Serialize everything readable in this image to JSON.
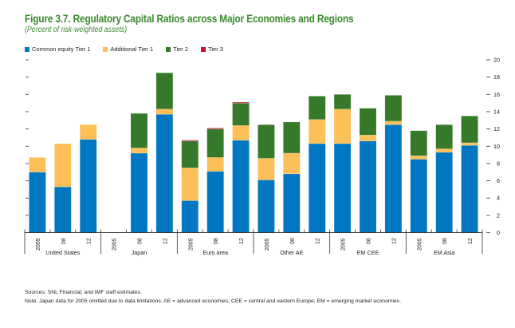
{
  "figure": {
    "title": "Figure 3.7.  Regulatory Capital Ratios across Major Economies and Regions",
    "subtitle": "(Percent of risk-weighted assets)"
  },
  "notes": {
    "sources": "Sources: SNL Financial; and IMF staff estimates.",
    "note": "Note: Japan data for 2005 omitted due to data limitations. AE = advanced economies; CEE = central and eastern Europe; EM = emerging market economies."
  },
  "chart_data": {
    "type": "bar",
    "stacked": true,
    "title": "Figure 3.7.  Regulatory Capital Ratios across Major Economies and Regions",
    "subtitle": "(Percent of risk-weighted assets)",
    "xlabel": "",
    "ylabel": "",
    "ylim": [
      0,
      20
    ],
    "yticks": [
      0,
      2,
      4,
      6,
      8,
      10,
      12,
      14,
      16,
      18,
      20
    ],
    "y_axis_side": "right",
    "legend_position": "top-left",
    "grid": false,
    "groups": [
      "United States",
      "Japan",
      "Euro area",
      "Other AE",
      "EM CEE",
      "EM Asia"
    ],
    "periods": [
      "2005",
      "08",
      "12"
    ],
    "categories": [
      "United States 2005",
      "United States 08",
      "United States 12",
      "Japan 2005",
      "Japan 08",
      "Japan 12",
      "Euro area 2005",
      "Euro area 08",
      "Euro area 12",
      "Other AE 2005",
      "Other AE 08",
      "Other AE 12",
      "EM CEE 2005",
      "EM CEE 08",
      "EM CEE 12",
      "EM Asia 2005",
      "EM Asia 08",
      "EM Asia 12"
    ],
    "series": [
      {
        "name": "Common equity Tier 1",
        "color": "#0077c0",
        "values": [
          7.0,
          5.3,
          10.8,
          null,
          9.2,
          13.7,
          3.7,
          7.1,
          10.7,
          6.1,
          6.8,
          10.3,
          10.3,
          10.6,
          12.5,
          8.5,
          9.3,
          10.1
        ]
      },
      {
        "name": "Additional Tier 1",
        "color": "#fdbf57",
        "values": [
          1.7,
          5.0,
          1.7,
          null,
          0.6,
          0.6,
          3.8,
          1.6,
          1.7,
          2.5,
          2.4,
          2.8,
          4.0,
          0.7,
          0.4,
          0.4,
          0.4,
          0.3
        ]
      },
      {
        "name": "Tier 2",
        "color": "#36792b",
        "values": [
          0,
          0,
          0,
          null,
          4.0,
          4.2,
          3.1,
          3.3,
          2.6,
          3.9,
          3.6,
          2.7,
          1.7,
          3.1,
          3.0,
          2.9,
          2.8,
          3.1
        ]
      },
      {
        "name": "Tier 3",
        "color": "#c8102e",
        "values": [
          0,
          0,
          0,
          null,
          0,
          0,
          0.1,
          0.1,
          0.1,
          0,
          0,
          0,
          0,
          0,
          0,
          0,
          0,
          0
        ]
      }
    ]
  }
}
